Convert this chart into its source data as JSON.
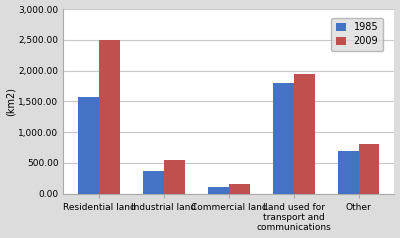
{
  "categories": [
    "Residential land",
    "Industrial land",
    "Commercial land",
    "Land used for\ntransport and\ncommunications",
    "Other"
  ],
  "values_1985": [
    1575,
    375,
    100,
    1800,
    700
  ],
  "values_2009": [
    2500,
    550,
    150,
    1950,
    800
  ],
  "color_1985": "#4472C4",
  "color_2009": "#C0504D",
  "ylabel": "(km2)",
  "ylim": [
    0,
    3000
  ],
  "yticks": [
    0,
    500,
    1000,
    1500,
    2000,
    2500,
    3000
  ],
  "ytick_labels": [
    "0.00",
    "500.00",
    "1,000.00",
    "1,500.00",
    "2,000.00",
    "2,500.00",
    "3,000.00"
  ],
  "legend_labels": [
    "1985",
    "2009"
  ],
  "bar_width": 0.32,
  "outer_bg": "#DCDCDC",
  "plot_bg": "#FFFFFF",
  "grid_color": "#C8C8C8",
  "axis_fontsize": 7,
  "tick_fontsize": 6.5,
  "legend_fontsize": 7
}
